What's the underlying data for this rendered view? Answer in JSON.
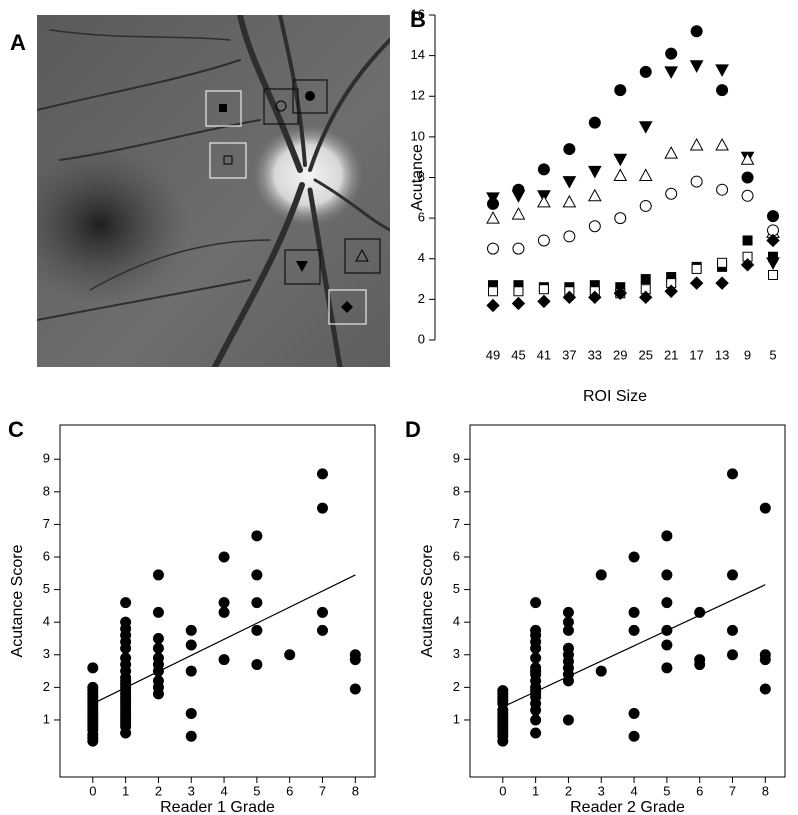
{
  "image": {
    "label": "A"
  },
  "chart_data": [
    {
      "type": "scatter",
      "label": "B",
      "x_label": "ROI Size",
      "y_label": "Acutance",
      "categories": [
        "49",
        "45",
        "41",
        "37",
        "33",
        "29",
        "25",
        "21",
        "17",
        "13",
        "9",
        "5"
      ],
      "ylim": [
        0,
        16
      ],
      "yticks": [
        0,
        2,
        4,
        6,
        8,
        10,
        12,
        14,
        16
      ],
      "series": [
        {
          "marker": "circle",
          "color": "#000000",
          "values": [
            6.7,
            7.4,
            8.4,
            9.4,
            10.7,
            12.3,
            13.2,
            14.1,
            15.2,
            12.3,
            8.0,
            6.1
          ]
        },
        {
          "marker": "triangle-down",
          "color": "#000000",
          "values": [
            7.0,
            7.1,
            7.1,
            7.8,
            8.3,
            8.9,
            10.5,
            13.2,
            13.5,
            13.3,
            9.0,
            3.8
          ]
        },
        {
          "marker": "triangle-up",
          "color": "#ffffff",
          "values": [
            6.0,
            6.2,
            6.8,
            6.8,
            7.1,
            8.1,
            8.1,
            9.2,
            9.6,
            9.6,
            8.9,
            5.3
          ]
        },
        {
          "marker": "circle",
          "color": "#ffffff",
          "values": [
            4.5,
            4.5,
            4.9,
            5.1,
            5.6,
            6.0,
            6.6,
            7.2,
            7.8,
            7.4,
            7.1,
            5.4
          ]
        },
        {
          "marker": "square",
          "color": "#000000",
          "values": [
            2.7,
            2.7,
            2.6,
            2.6,
            2.7,
            2.6,
            3.0,
            3.1,
            3.6,
            3.6,
            4.9,
            4.1
          ]
        },
        {
          "marker": "square",
          "color": "#ffffff",
          "values": [
            2.4,
            2.4,
            2.5,
            2.4,
            2.4,
            2.3,
            2.5,
            2.8,
            3.5,
            3.8,
            4.1,
            3.2
          ]
        },
        {
          "marker": "diamond",
          "color": "#000000",
          "values": [
            1.7,
            1.8,
            1.9,
            2.1,
            2.1,
            2.3,
            2.1,
            2.4,
            2.8,
            2.8,
            3.7,
            4.9
          ]
        }
      ]
    },
    {
      "type": "scatter",
      "label": "C",
      "x_label": "Reader 1 Grade",
      "y_label": "Acutance Score",
      "xlim": [
        -1,
        8.6
      ],
      "xticks": [
        0,
        1,
        2,
        3,
        4,
        5,
        6,
        7,
        8
      ],
      "ylim": [
        -0.75,
        10.05
      ],
      "yticks": [
        1,
        2,
        3,
        4,
        5,
        6,
        7,
        8,
        9
      ],
      "color": "#000000",
      "x": [
        0,
        0,
        0,
        0,
        0,
        0,
        0,
        0,
        0,
        0,
        0,
        0,
        0,
        0,
        0,
        0,
        0,
        0,
        1,
        1,
        1,
        1,
        1,
        1,
        1,
        1,
        1,
        1,
        1,
        1,
        1,
        1,
        1,
        1,
        1,
        1,
        1,
        1,
        1,
        1,
        1,
        1,
        1,
        1,
        2,
        2,
        2,
        2,
        2,
        2,
        2,
        2,
        2,
        2,
        3,
        3,
        3,
        3,
        3,
        4,
        4,
        4,
        4,
        5,
        5,
        5,
        5,
        5,
        6,
        7,
        7,
        7,
        7,
        8,
        8,
        8
      ],
      "values": [
        0.35,
        0.45,
        0.55,
        0.7,
        0.8,
        0.9,
        1.0,
        1.1,
        1.2,
        1.3,
        1.4,
        1.5,
        1.6,
        1.7,
        1.8,
        1.9,
        2.0,
        2.6,
        0.6,
        0.8,
        0.9,
        1.0,
        1.1,
        1.2,
        1.3,
        1.4,
        1.5,
        1.6,
        1.7,
        1.8,
        1.9,
        2.0,
        2.1,
        2.2,
        2.3,
        2.5,
        2.7,
        2.9,
        3.2,
        3.4,
        3.6,
        3.8,
        4.0,
        4.6,
        1.8,
        2.0,
        2.2,
        2.5,
        2.7,
        2.9,
        3.2,
        3.5,
        4.3,
        5.45,
        0.5,
        1.2,
        2.5,
        3.3,
        3.75,
        2.85,
        4.3,
        4.6,
        6.0,
        2.7,
        3.75,
        4.6,
        5.45,
        6.65,
        3.0,
        3.75,
        4.3,
        7.5,
        8.55,
        1.95,
        2.85,
        3.0
      ],
      "fit": {
        "x": [
          0,
          8
        ],
        "y": [
          1.5,
          5.45
        ]
      }
    },
    {
      "type": "scatter",
      "label": "D",
      "x_label": "Reader 2 Grade",
      "y_label": "Acutance Score",
      "xlim": [
        -1,
        8.6
      ],
      "xticks": [
        0,
        1,
        2,
        3,
        4,
        5,
        6,
        7,
        8
      ],
      "ylim": [
        -0.75,
        10.05
      ],
      "yticks": [
        1,
        2,
        3,
        4,
        5,
        6,
        7,
        8,
        9
      ],
      "color": "#000000",
      "x": [
        0,
        0,
        0,
        0,
        0,
        0,
        0,
        0,
        0,
        0,
        0,
        0,
        0,
        0,
        0,
        1,
        1,
        1,
        1,
        1,
        1,
        1,
        1,
        1,
        1,
        1,
        1,
        1,
        1,
        1,
        1,
        1,
        1,
        2,
        2,
        2,
        2,
        2,
        2,
        2,
        2,
        2,
        2,
        3,
        3,
        4,
        4,
        4,
        4,
        4,
        5,
        5,
        5,
        5,
        5,
        5,
        6,
        6,
        6,
        7,
        7,
        7,
        7,
        8,
        8,
        8,
        8
      ],
      "values": [
        0.35,
        0.5,
        0.6,
        0.7,
        0.8,
        0.9,
        1.0,
        1.1,
        1.2,
        1.3,
        1.5,
        1.6,
        1.7,
        1.8,
        1.9,
        0.6,
        1.0,
        1.3,
        1.5,
        1.7,
        1.8,
        1.9,
        2.0,
        2.2,
        2.4,
        2.5,
        2.6,
        2.9,
        3.2,
        3.4,
        3.6,
        3.75,
        4.6,
        1.0,
        2.2,
        2.4,
        2.6,
        2.8,
        3.0,
        3.2,
        3.75,
        4.0,
        4.3,
        2.5,
        5.45,
        0.5,
        1.2,
        3.75,
        4.3,
        6.0,
        2.6,
        3.3,
        3.75,
        4.6,
        5.45,
        6.65,
        2.7,
        2.85,
        4.3,
        3.0,
        3.75,
        5.45,
        8.55,
        1.95,
        2.85,
        3.0,
        7.5
      ],
      "fit": {
        "x": [
          0,
          8
        ],
        "y": [
          1.4,
          5.15
        ]
      }
    }
  ]
}
